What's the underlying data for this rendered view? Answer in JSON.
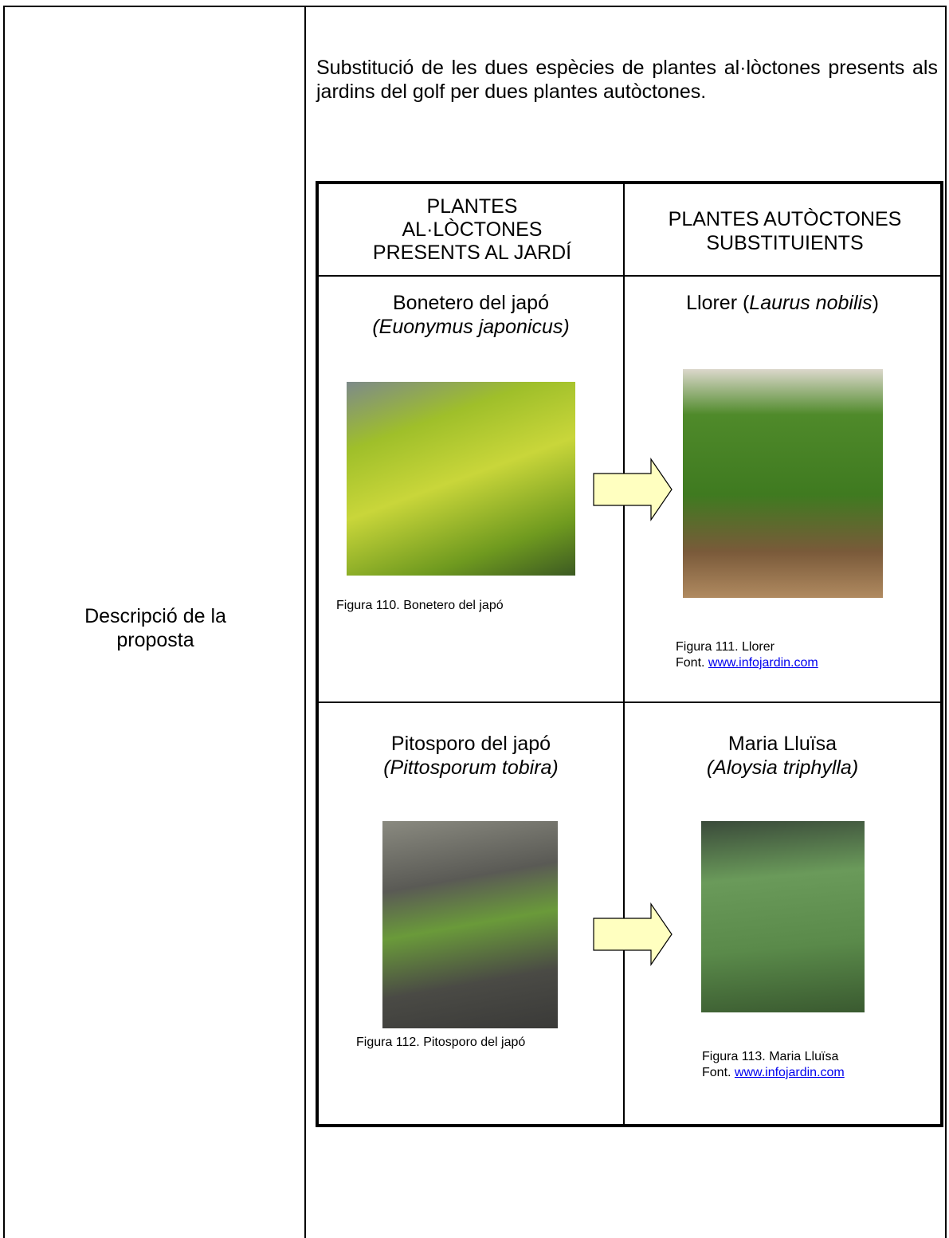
{
  "row_label": "Descripció de la proposta",
  "description": "Substitució de les dues espècies de plantes al·lòctones presents als jardins del golf per dues plantes autòctones.",
  "plant_table": {
    "headers": [
      "PLANTES AL·LÒCTONES PRESENTS AL JARDÍ",
      "PLANTES AUTÒCTONES SUBSTITUIENTS"
    ],
    "rows": [
      [
        {
          "name": "Bonetero del japó",
          "latin": "(Euonymus japonicus)",
          "caption": "Figura 110. Bonetero del japó"
        },
        {
          "name": "Llorer (",
          "latin": "Laurus nobilis",
          "name_end": ")",
          "caption": "Figura 111. Llorer",
          "source": "Font.",
          "link": "www.infojardin.com"
        }
      ],
      [
        {
          "name": "Pitosporo del japó",
          "latin": "(Pittosporum tobira)",
          "caption": "Figura 112. Pitosporo del japó"
        },
        {
          "name": "Maria Lluïsa",
          "latin": "(Aloysia triphylla)",
          "caption": "Figura 113. Maria Lluïsa",
          "source": "Font.",
          "link": "www.infojardin.com"
        }
      ]
    ]
  }
}
